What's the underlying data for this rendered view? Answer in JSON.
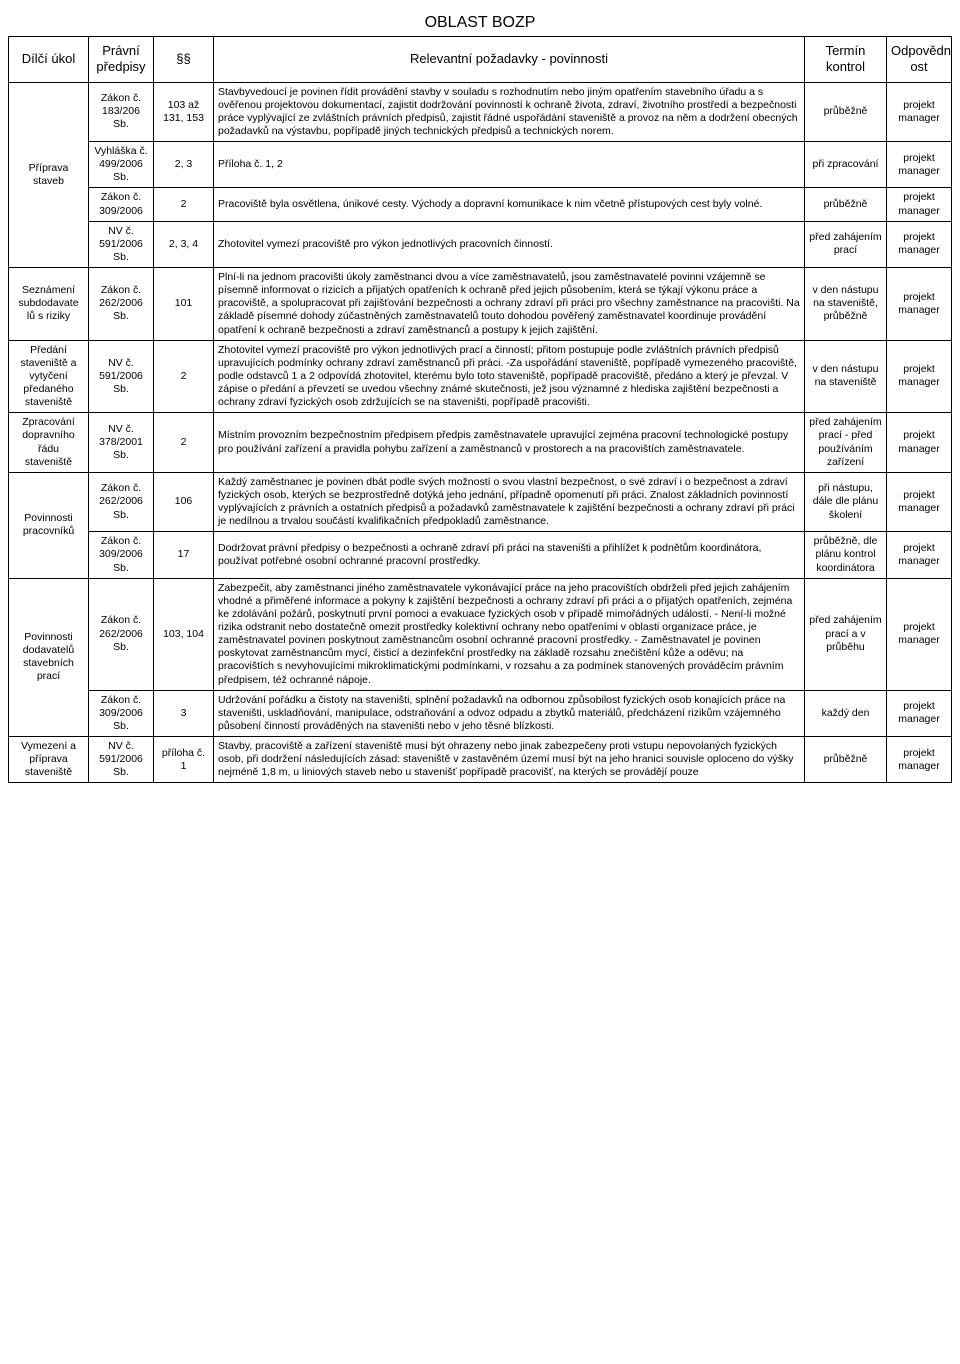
{
  "title": "OBLAST BOZP",
  "headers": {
    "task": "Dílčí úkol",
    "law": "Právní předpisy",
    "para": "§§",
    "req": "Relevantní požadavky - povinnosti",
    "term": "Termín kontrol",
    "resp": "Odpovědn ost"
  },
  "groups": [
    {
      "task": "Příprava staveb",
      "rows": [
        {
          "law": "Zákon č. 183/206 Sb.",
          "para": "103 až 131, 153",
          "req": "Stavbyvedoucí je povinen řídit provádění stavby v souladu s rozhodnutím nebo jiným opatřením stavebního úřadu a s ověřenou projektovou dokumentací, zajistit dodržování povinností k ochraně života, zdraví, životního prostředí a bezpečnosti práce vyplývající ze zvláštních právních předpisů, zajistit řádné uspořádání staveniště a provoz na něm a dodržení obecných požadavků na výstavbu, popřípadě jiných technických předpisů a technických norem.",
          "term": "průběžně",
          "resp": "projekt manager"
        },
        {
          "law": "Vyhláška č. 499/2006 Sb.",
          "para": "2, 3",
          "req": "Příloha č. 1, 2",
          "term": "při zpracování",
          "resp": "projekt manager"
        },
        {
          "law": "Zákon č. 309/2006",
          "para": "2",
          "req": "Pracoviště byla osvětlena, únikové cesty. Východy a dopravní komunikace k nim včetně přístupových cest byly volné.",
          "term": "průběžně",
          "resp": "projekt manager"
        },
        {
          "law": "NV č. 591/2006 Sb.",
          "para": "2, 3, 4",
          "req": "Zhotovitel vymezí pracoviště pro výkon jednotlivých pracovních činností.",
          "term": "před zahájením prací",
          "resp": "projekt manager"
        }
      ]
    },
    {
      "task": "Seznámení subdodavate lů s riziky",
      "rows": [
        {
          "law": "Zákon č. 262/2006 Sb.",
          "para": "101",
          "req": "Plní-li na jednom pracovišti úkoly zaměstnanci dvou a více zaměstnavatelů, jsou zaměstnavatelé povinni vzájemně se písemně informovat o rizicích a přijatých opatřeních k ochraně před jejich působením, která se týkají výkonu práce a pracoviště, a spolupracovat při zajišťování bezpečnosti a ochrany zdraví při práci pro všechny zaměstnance na pracovišti. Na základě písemné dohody zúčastněných zaměstnavatelů touto dohodou pověřený zaměstnavatel koordinuje provádění opatření k ochraně bezpečnosti a zdraví zaměstnanců a postupy k jejich zajištění.",
          "term": "v den nástupu na staveniště, průběžně",
          "resp": "projekt manager"
        }
      ]
    },
    {
      "task": "Předání staveniště a vytyčení předaného staveniště",
      "rows": [
        {
          "law": "NV č. 591/2006 Sb.",
          "para": "2",
          "req": "Zhotovitel vymezí pracoviště pro výkon jednotlivých prací a činností; přitom postupuje podle zvláštních právních předpisů upravujících podmínky ochrany zdraví zaměstnanců při práci. -Za uspořádání staveniště, popřípadě vymezeného pracoviště, podle odstavců 1 a 2 odpovídá zhotovitel, kterému bylo toto staveniště, popřípadě pracoviště, předáno a který je převzal. V zápise o předání a převzetí se uvedou všechny známé skutečnosti, jež jsou významné z hlediska zajištění bezpečnosti a ochrany zdraví fyzických osob zdržujících se na staveništi, popřípadě pracovišti.",
          "term": "v den nástupu na staveniště",
          "resp": "projekt manager"
        }
      ]
    },
    {
      "task": "Zpracování dopravního řádu staveniště",
      "rows": [
        {
          "law": "NV č. 378/2001 Sb.",
          "para": "2",
          "req": "Místním provozním bezpečnostním předpisem předpis zaměstnavatele upravující zejména pracovní technologické postupy pro používání zařízení a pravidla pohybu zařízení a zaměstnanců v prostorech a na pracovištích zaměstnavatele.",
          "term": "před zahájením prací - před používáním zařízení",
          "resp": "projekt manager"
        }
      ]
    },
    {
      "task": "Povinnosti pracovníků",
      "rows": [
        {
          "law": "Zákon č. 262/2006 Sb.",
          "para": "106",
          "req": "Každý zaměstnanec je povinen dbát podle svých možností o svou vlastní bezpečnost, o své zdraví i o bezpečnost a zdraví fyzických osob, kterých se bezprostředně dotýká jeho jednání, případně opomenutí při práci. Znalost základních povinností vyplývajících z právních a ostatních předpisů a požadavků zaměstnavatele k zajištění bezpečnosti a ochrany zdraví při práci je nedílnou a trvalou součástí kvalifikačních předpokladů zaměstnance.",
          "term": "při nástupu, dále dle plánu školení",
          "resp": "projekt manager"
        },
        {
          "law": "Zákon č. 309/2006 Sb.",
          "para": "17",
          "req": "Dodržovat právní předpisy o bezpečnosti a ochraně zdraví při práci na staveništi a přihlížet k podnětům koordinátora, používat potřebné osobní ochranné pracovní prostředky.",
          "term": "průběžně, dle plánu kontrol koordinátora",
          "resp": "projekt manager"
        }
      ]
    },
    {
      "task": "Povinnosti dodavatelů stavebních prací",
      "rows": [
        {
          "law": "Zákon č. 262/2006 Sb.",
          "para": "103, 104",
          "req": "Zabezpečit, aby zaměstnanci jiného zaměstnavatele vykonávající práce na jeho pracovištích obdrželi před jejich zahájením vhodné a přiměřené informace a pokyny k zajištění bezpečnosti a ochrany zdraví při práci a o přijatých opatřeních, zejména ke zdolávání požárů, poskytnutí první pomoci a evakuace fyzických osob v případě mimořádných událostí. - Není-li možné rizika odstranit nebo dostatečně omezit prostředky kolektivní ochrany nebo opatřeními v oblasti organizace práce, je zaměstnavatel povinen poskytnout zaměstnancům osobní ochranné pracovní prostředky. - Zaměstnavatel je povinen poskytovat zaměstnancům mycí, čisticí a dezinfekční prostředky na základě rozsahu znečištění kůže a oděvu; na pracovištích s nevyhovujícími mikroklimatickými podmínkami, v rozsahu a za podmínek stanovených prováděcím právním předpisem, též ochranné nápoje.",
          "term": "před zahájením prací a v průběhu",
          "resp": "projekt manager"
        },
        {
          "law": "Zákon č. 309/2006 Sb.",
          "para": "3",
          "req": "Udržování pořádku a čistoty na staveništi, splnění požadavků na odbornou způsobilost fyzických osob konajících práce na staveništi, uskladňování, manipulace, odstraňování a odvoz odpadu a zbytků materiálů, předcházení rizikům vzájemného působení činností prováděných na staveništi nebo v jeho těsné blízkosti.",
          "term": "každý den",
          "resp": "projekt manager"
        }
      ]
    },
    {
      "task": "Vymezení a příprava staveniště",
      "rows": [
        {
          "law": "NV č. 591/2006 Sb.",
          "para": "příloha č. 1",
          "req": "Stavby, pracoviště a zařízení staveniště musí být ohrazeny nebo jinak zabezpečeny proti vstupu nepovolaných fyzických osob, při dodržení následujících zásad: staveniště v zastavěném území musí být na jeho hranici souvisle oploceno do výšky nejméně 1,8 m, u liniových staveb nebo u stavenišť popřípadě pracovišť, na kterých se provádějí pouze",
          "term": "průběžně",
          "resp": "projekt manager"
        }
      ]
    }
  ]
}
